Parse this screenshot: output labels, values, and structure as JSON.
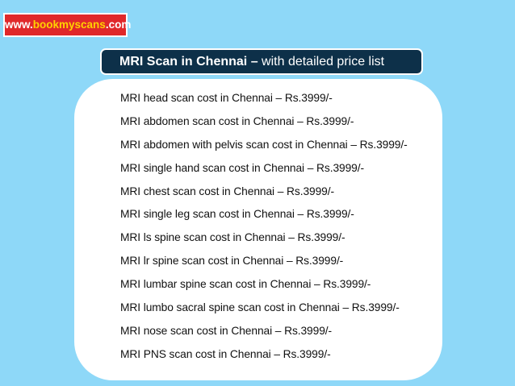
{
  "site": {
    "prefix": "www.",
    "brand": "bookmyscans",
    "suffix": ".com"
  },
  "title": {
    "bold": "MRI Scan in Chennai –",
    "rest": " with detailed price list"
  },
  "price_list": [
    "MRI head scan cost in Chennai – Rs.3999/-",
    "MRI abdomen scan cost in Chennai – Rs.3999/-",
    "MRI abdomen with pelvis scan cost in Chennai – Rs.3999/-",
    "MRI single hand scan cost in Chennai – Rs.3999/-",
    "MRI chest scan cost in Chennai – Rs.3999/-",
    "MRI single leg scan cost in Chennai – Rs.3999/-",
    "MRI ls spine scan cost in Chennai – Rs.3999/-",
    "MRI lr spine scan cost in Chennai – Rs.3999/-",
    "MRI lumbar spine scan cost in Chennai – Rs.3999/-",
    "MRI lumbo sacral spine scan cost in Chennai – Rs.3999/-",
    "MRI nose scan cost in Chennai – Rs.3999/-",
    "MRI PNS scan cost in Chennai – Rs.3999/-"
  ],
  "colors": {
    "background": "#8ed8f8",
    "badge_red": "#e0282a",
    "brand_yellow": "#ffd200",
    "title_navy": "#0d3049",
    "card_white": "#ffffff"
  }
}
